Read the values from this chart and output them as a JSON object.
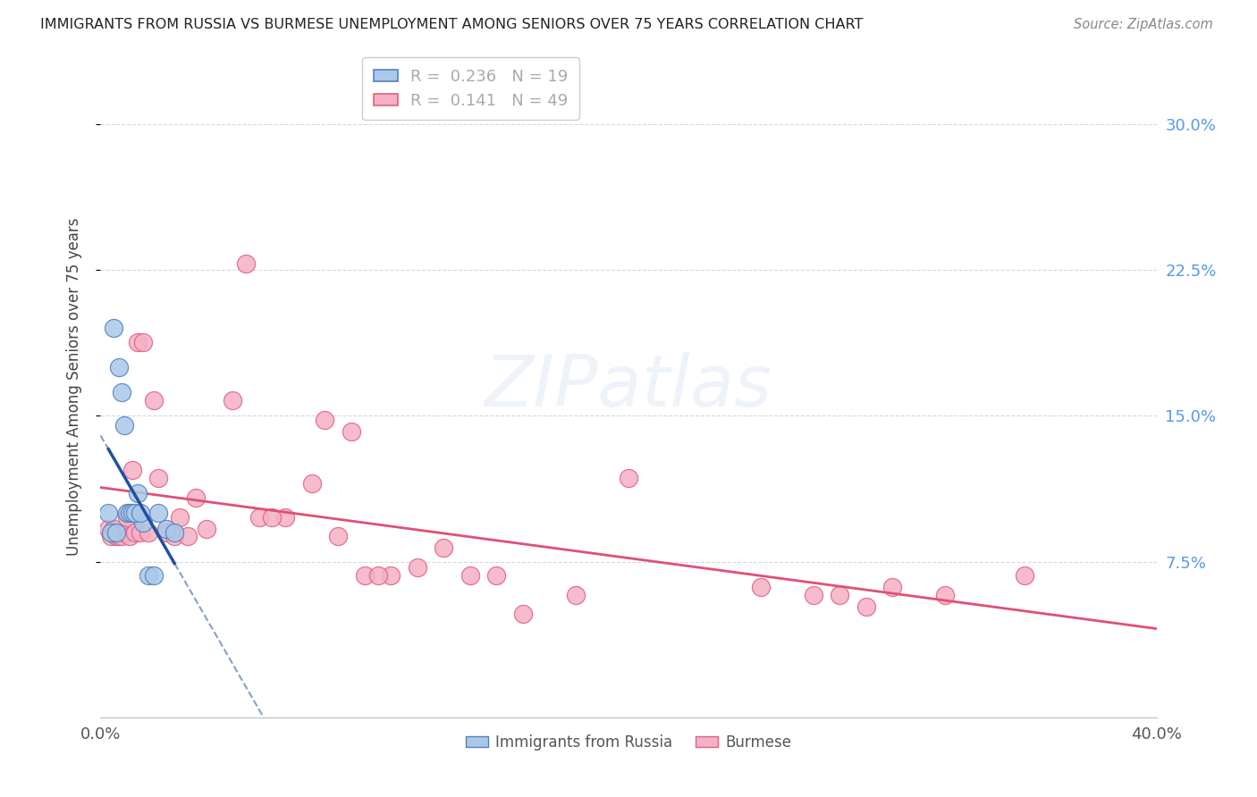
{
  "title": "IMMIGRANTS FROM RUSSIA VS BURMESE UNEMPLOYMENT AMONG SENIORS OVER 75 YEARS CORRELATION CHART",
  "source": "Source: ZipAtlas.com",
  "ylabel": "Unemployment Among Seniors over 75 years",
  "xlim": [
    0,
    0.4
  ],
  "ylim": [
    -0.005,
    0.335
  ],
  "russia_R": 0.236,
  "russia_N": 19,
  "burmese_R": 0.141,
  "burmese_N": 49,
  "russia_color": "#aac8e8",
  "burmese_color": "#f5b0c5",
  "russia_edge_color": "#5080c0",
  "burmese_edge_color": "#e06080",
  "russia_line_color": "#2050a0",
  "burmese_line_color": "#e05075",
  "russia_x": [
    0.005,
    0.007,
    0.008,
    0.009,
    0.01,
    0.011,
    0.012,
    0.014,
    0.016,
    0.018,
    0.02,
    0.022,
    0.025,
    0.003,
    0.004,
    0.006,
    0.013,
    0.015,
    0.028
  ],
  "russia_y": [
    0.195,
    0.175,
    0.162,
    0.145,
    0.1,
    0.1,
    0.1,
    0.11,
    0.095,
    0.068,
    0.068,
    0.1,
    0.092,
    0.1,
    0.09,
    0.09,
    0.1,
    0.1,
    0.09
  ],
  "burmese_x": [
    0.003,
    0.004,
    0.005,
    0.006,
    0.007,
    0.008,
    0.009,
    0.01,
    0.011,
    0.012,
    0.013,
    0.014,
    0.015,
    0.016,
    0.018,
    0.02,
    0.022,
    0.025,
    0.028,
    0.03,
    0.033,
    0.036,
    0.04,
    0.05,
    0.06,
    0.07,
    0.08,
    0.09,
    0.1,
    0.11,
    0.12,
    0.13,
    0.14,
    0.16,
    0.18,
    0.2,
    0.25,
    0.28,
    0.3,
    0.32,
    0.27,
    0.29,
    0.35,
    0.055,
    0.065,
    0.085,
    0.095,
    0.105,
    0.15
  ],
  "burmese_y": [
    0.092,
    0.088,
    0.092,
    0.088,
    0.088,
    0.088,
    0.09,
    0.098,
    0.088,
    0.122,
    0.09,
    0.188,
    0.09,
    0.188,
    0.09,
    0.158,
    0.118,
    0.09,
    0.088,
    0.098,
    0.088,
    0.108,
    0.092,
    0.158,
    0.098,
    0.098,
    0.115,
    0.088,
    0.068,
    0.068,
    0.072,
    0.082,
    0.068,
    0.048,
    0.058,
    0.118,
    0.062,
    0.058,
    0.062,
    0.058,
    0.058,
    0.052,
    0.068,
    0.228,
    0.098,
    0.148,
    0.142,
    0.068,
    0.068
  ],
  "watermark_text": "ZIPatlas",
  "background_color": "#ffffff",
  "grid_color": "#d8d8d8",
  "right_tick_color": "#5599ee"
}
